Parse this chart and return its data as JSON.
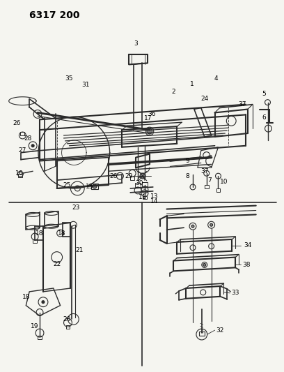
{
  "title": "6317 200",
  "bg_color": "#f5f5f0",
  "line_color": "#2a2a2a",
  "label_color": "#000000",
  "label_fontsize": 6.5,
  "title_fontsize": 10,
  "fig_width": 4.08,
  "fig_height": 5.33,
  "dpi": 100
}
